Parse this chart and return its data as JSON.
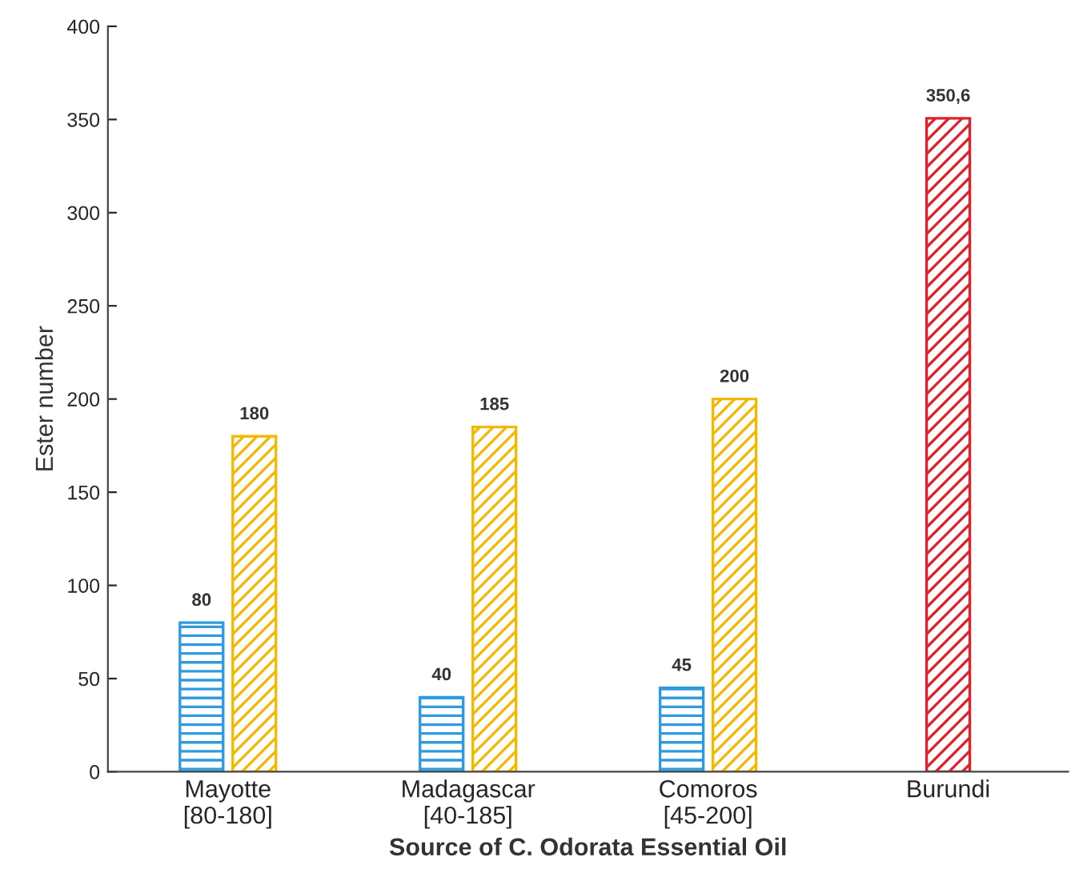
{
  "chart_data": {
    "type": "bar",
    "xlabel": "Source of C. Odorata Essential Oil",
    "ylabel": "Ester number",
    "categories": [
      "Mayotte\n[80-180]",
      "Madagascar\n[40-185]",
      "Comoros\n[45-200]",
      "Burundi"
    ],
    "series": [
      {
        "color": "#2e9be0",
        "values": [
          80,
          40,
          45,
          null
        ],
        "value_labels": [
          "80",
          "40",
          "45",
          null
        ]
      },
      {
        "color": "#f5b800",
        "values": [
          180,
          185,
          200,
          null
        ],
        "value_labels": [
          "180",
          "185",
          "200",
          null
        ]
      },
      {
        "color": "#e0202a",
        "values": [
          null,
          null,
          null,
          350.6
        ],
        "value_labels": [
          null,
          null,
          null,
          "350,6"
        ]
      }
    ],
    "ylim": [
      0,
      400
    ],
    "yticks": [
      0,
      50,
      100,
      150,
      200,
      250,
      300,
      350,
      400
    ],
    "grid": false,
    "legend": false
  }
}
